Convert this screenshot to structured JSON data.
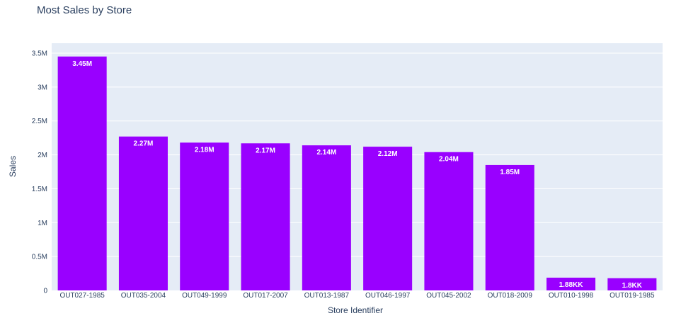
{
  "chart_data": {
    "type": "bar",
    "title": "Most Sales by Store",
    "xlabel": "Store Identifier",
    "ylabel": "Sales",
    "categories": [
      "OUT027-1985",
      "OUT035-2004",
      "OUT049-1999",
      "OUT017-2007",
      "OUT013-1987",
      "OUT046-1997",
      "OUT045-2002",
      "OUT018-2009",
      "OUT010-1998",
      "OUT019-1985"
    ],
    "values": [
      3450000,
      2270000,
      2180000,
      2170000,
      2140000,
      2120000,
      2040000,
      1850000,
      188000,
      180000
    ],
    "data_labels": [
      "3.45M",
      "2.27M",
      "2.18M",
      "2.17M",
      "2.14M",
      "2.12M",
      "2.04M",
      "1.85M",
      "1.88KK",
      "1.8KK"
    ],
    "ylim": [
      0,
      3500000
    ],
    "yticks": [
      0,
      500000,
      1000000,
      1500000,
      2000000,
      2500000,
      3000000,
      3500000
    ],
    "ytick_labels": [
      "0",
      "0.5M",
      "1M",
      "1.5M",
      "2M",
      "2.5M",
      "3M",
      "3.5M"
    ],
    "grid": true,
    "colors": {
      "bar": "#9900ff",
      "plot_background": "#e5ecf6",
      "grid": "#ffffff",
      "text": "#2a3f5f",
      "data_label": "#ffffff"
    }
  }
}
